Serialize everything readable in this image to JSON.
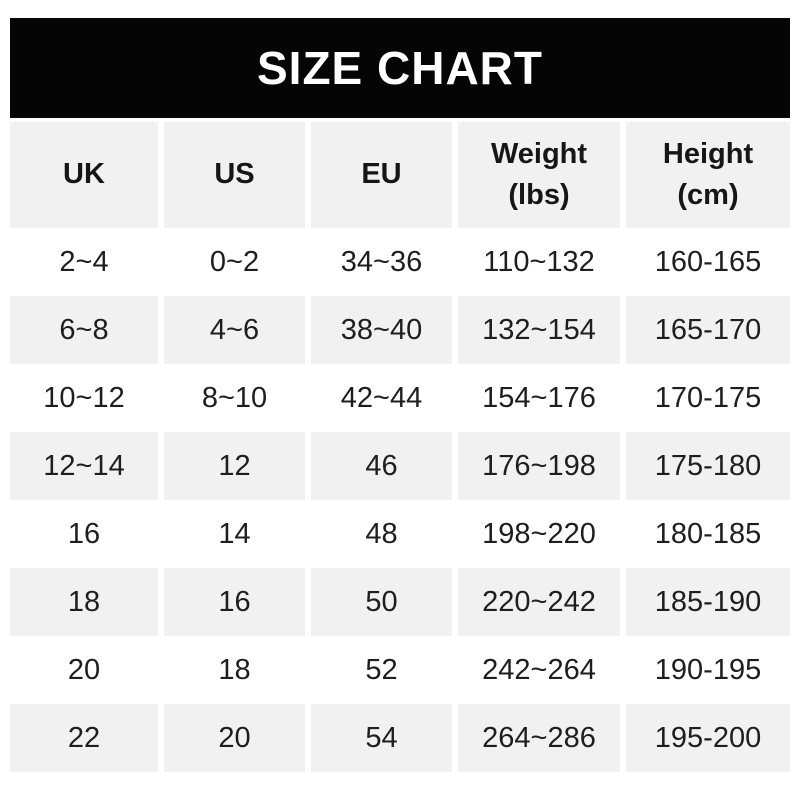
{
  "title": "SIZE CHART",
  "colors": {
    "banner_bg": "#050505",
    "banner_text": "#ffffff",
    "row_alt_bg": "#f1f1f1",
    "row_bg": "#ffffff",
    "text": "#1e1e1e"
  },
  "table": {
    "headers": [
      {
        "label": "UK",
        "sub": ""
      },
      {
        "label": "US",
        "sub": ""
      },
      {
        "label": "EU",
        "sub": ""
      },
      {
        "label": "Weight",
        "sub": "(lbs)"
      },
      {
        "label": "Height",
        "sub": "(cm)"
      }
    ],
    "rows": [
      [
        "2~4",
        "0~2",
        "34~36",
        "110~132",
        "160-165"
      ],
      [
        "6~8",
        "4~6",
        "38~40",
        "132~154",
        "165-170"
      ],
      [
        "10~12",
        "8~10",
        "42~44",
        "154~176",
        "170-175"
      ],
      [
        "12~14",
        "12",
        "46",
        "176~198",
        "175-180"
      ],
      [
        "16",
        "14",
        "48",
        "198~220",
        "180-185"
      ],
      [
        "18",
        "16",
        "50",
        "220~242",
        "185-190"
      ],
      [
        "20",
        "18",
        "52",
        "242~264",
        "190-195"
      ],
      [
        "22",
        "20",
        "54",
        "264~286",
        "195-200"
      ]
    ]
  },
  "chart_data": {
    "type": "table",
    "title": "SIZE CHART",
    "columns": [
      "UK",
      "US",
      "EU",
      "Weight (lbs)",
      "Height (cm)"
    ],
    "rows": [
      [
        "2~4",
        "0~2",
        "34~36",
        "110~132",
        "160-165"
      ],
      [
        "6~8",
        "4~6",
        "38~40",
        "132~154",
        "165-170"
      ],
      [
        "10~12",
        "8~10",
        "42~44",
        "154~176",
        "170-175"
      ],
      [
        "12~14",
        "12",
        "46",
        "176~198",
        "175-180"
      ],
      [
        "16",
        "14",
        "48",
        "198~220",
        "180-185"
      ],
      [
        "18",
        "16",
        "50",
        "220~242",
        "185-190"
      ],
      [
        "20",
        "18",
        "52",
        "242~264",
        "190-195"
      ],
      [
        "22",
        "20",
        "54",
        "264~286",
        "195-200"
      ]
    ],
    "layout": {
      "header_style": "bold on light gray",
      "row_striping": "white / #f1f1f1 alternating starting white",
      "banner": "black bar with white bold title"
    }
  }
}
